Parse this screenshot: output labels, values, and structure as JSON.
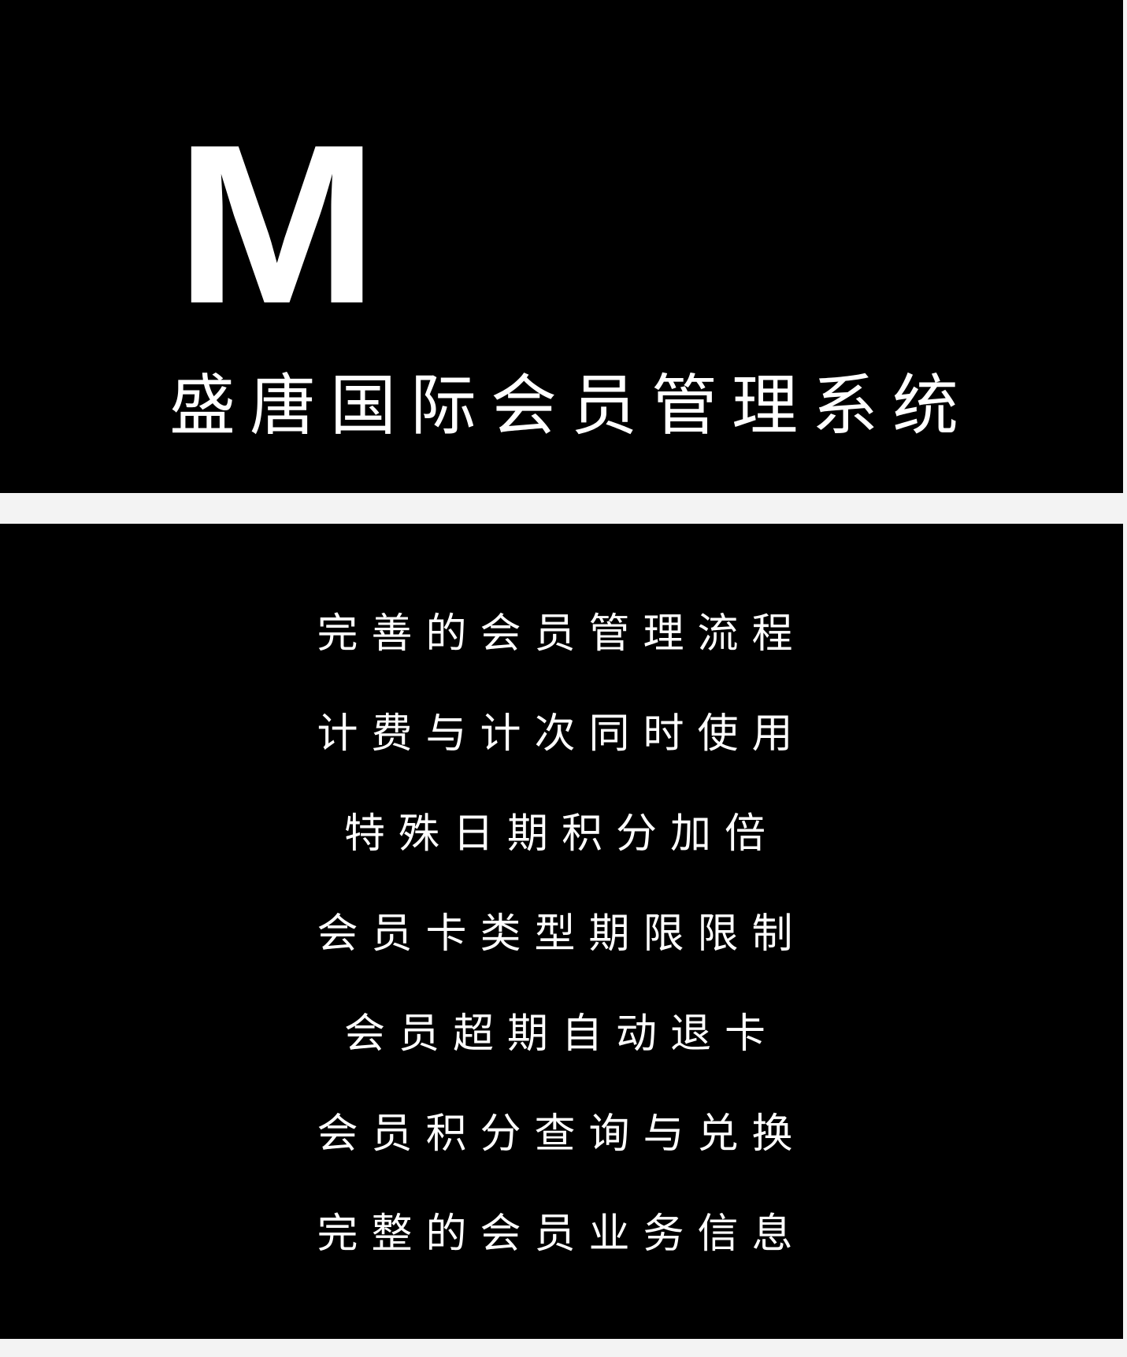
{
  "logo": {
    "text": "M"
  },
  "app": {
    "title": "盛唐国际会员管理系统"
  },
  "features": [
    {
      "label": "完善的会员管理流程"
    },
    {
      "label": "计费与计次同时使用"
    },
    {
      "label": "特殊日期积分加倍"
    },
    {
      "label": "会员卡类型期限限制"
    },
    {
      "label": "会员超期自动退卡"
    },
    {
      "label": "会员积分查询与兑换"
    },
    {
      "label": "完整的会员业务信息"
    }
  ],
  "colors": {
    "panel_background": "#000000",
    "text": "#ffffff",
    "page_background": "#f3f3f3"
  }
}
